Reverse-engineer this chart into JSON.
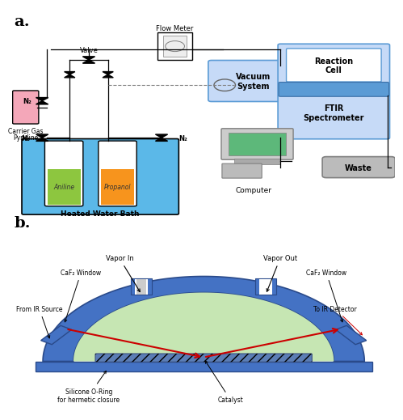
{
  "title_a": "a.",
  "title_b": "b.",
  "bg_color": "#ffffff",
  "panel_a_bg": "#f5f5f5",
  "water_bath_color": "#5bb8e8",
  "aniline_color": "#8dc63f",
  "propanol_color": "#f7941d",
  "pyridine_color": "#f4a7b9",
  "bottle_fill": "#ffffff",
  "line_color": "#000000",
  "box_light_blue": "#c6daf7",
  "box_mid_blue": "#5b9bd5",
  "box_gray": "#aaaaaa",
  "dome_blue": "#4472c4",
  "dome_green": "#c6e6b3",
  "ir_red": "#cc0000",
  "arrow_color": "#000000",
  "label_heated": "Heated Water Bath",
  "label_aniline": "Aniline",
  "label_propanol": "Propanol",
  "label_pyridine": "Pyridine",
  "label_n2_left": "N₂",
  "label_n2_right": "N₂",
  "label_n2_carrier": "Carrier Gas\nN₂",
  "label_valve": "Valve",
  "label_flow": "Flow Meter",
  "label_vacuum": "Vacuum\nSystem",
  "label_reaction": "Reaction\nCell",
  "label_ftir": "FTIR\nSpectrometer",
  "label_waste": "Waste",
  "label_computer": "Computer",
  "label_vapor_in": "Vapor In",
  "label_vapor_out": "Vapor Out",
  "label_caf2_left": "CaF₂ Window",
  "label_caf2_right": "CaF₂ Window",
  "label_ir_source": "From IR Source",
  "label_ir_detector": "To IR Detector",
  "label_oring": "Silicone O-Ring\nfor hermetic closure",
  "label_catalyst": "Catalyst"
}
